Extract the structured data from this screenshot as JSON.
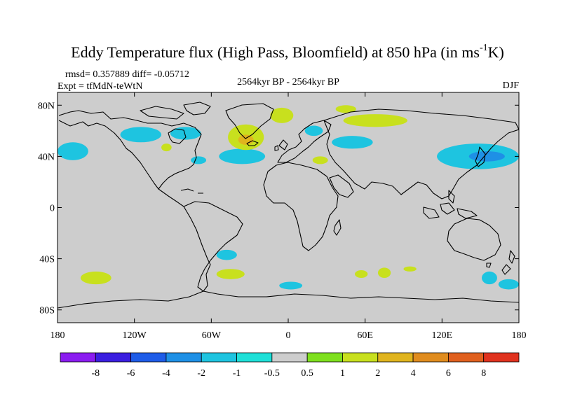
{
  "figure": {
    "title_main": "Eddy Temperature flux (High Pass, Bloomfield) at 850 hPa (in ms",
    "title_sup": "-1",
    "title_end": "K)",
    "stats": "rmsd= 0.357889 diff= -0.05712",
    "experiment": "Expt = tfMdN-teWtN",
    "period": "2564kyr BP - 2564kyr BP",
    "season": "DJF"
  },
  "map": {
    "projection": "cylindrical equidistant",
    "lon_range": [
      -180,
      180
    ],
    "lat_range": [
      -90,
      90
    ],
    "lon_ticks": [
      {
        "value": -180,
        "label": "180"
      },
      {
        "value": -120,
        "label": "120W"
      },
      {
        "value": -60,
        "label": "60W"
      },
      {
        "value": 0,
        "label": "0"
      },
      {
        "value": 60,
        "label": "60E"
      },
      {
        "value": 120,
        "label": "120E"
      },
      {
        "value": 180,
        "label": "180"
      }
    ],
    "lat_ticks": [
      {
        "value": 80,
        "label": "80N"
      },
      {
        "value": 40,
        "label": "40N"
      },
      {
        "value": 0,
        "label": "0"
      },
      {
        "value": -40,
        "label": "40S"
      },
      {
        "value": -80,
        "label": "80S"
      }
    ],
    "background_color": "#cdcdcd",
    "coastline_color": "#000000"
  },
  "colorbar": {
    "labels": [
      "-8",
      "-6",
      "-4",
      "-2",
      "-1",
      "-0.5",
      "0.5",
      "1",
      "2",
      "4",
      "6",
      "8"
    ],
    "colors": [
      "#8b1cf0",
      "#3a1ee0",
      "#1e5ce8",
      "#1e90e6",
      "#1ec4e0",
      "#1ee0d8",
      "#cdcdcd",
      "#7ee01e",
      "#c8e01e",
      "#e0b41e",
      "#e08c1e",
      "#e0601e",
      "#e0321e"
    ]
  },
  "anomalies": [
    {
      "level": "-1",
      "lon": -115,
      "lat": 57,
      "rlon": 16,
      "rlat": 6
    },
    {
      "level": "-1",
      "lon": -80,
      "lat": 58,
      "rlon": 12,
      "rlat": 5
    },
    {
      "level": "-1",
      "lon": -168,
      "lat": 44,
      "rlon": 12,
      "rlat": 7
    },
    {
      "level": "-1",
      "lon": -36,
      "lat": 40,
      "rlon": 18,
      "rlat": 6
    },
    {
      "level": "-1",
      "lon": -70,
      "lat": 37,
      "rlon": 6,
      "rlat": 3
    },
    {
      "level": "-1",
      "lon": 20,
      "lat": 60,
      "rlon": 7,
      "rlat": 4
    },
    {
      "level": "-1",
      "lon": 50,
      "lat": 51,
      "rlon": 16,
      "rlat": 5
    },
    {
      "level": "-1",
      "lon": 148,
      "lat": 40,
      "rlon": 32,
      "rlat": 10
    },
    {
      "level": "-1",
      "lon": -48,
      "lat": -37,
      "rlon": 8,
      "rlat": 4
    },
    {
      "level": "-1",
      "lon": 2,
      "lat": -61,
      "rlon": 9,
      "rlat": 3
    },
    {
      "level": "-1",
      "lon": 157,
      "lat": -55,
      "rlon": 6,
      "rlat": 5
    },
    {
      "level": "-1",
      "lon": 172,
      "lat": -60,
      "rlon": 8,
      "rlat": 4
    },
    {
      "level": "-2",
      "lon": 155,
      "lat": 40,
      "rlon": 14,
      "rlat": 4
    },
    {
      "level": "1",
      "lon": -33,
      "lat": 55,
      "rlon": 14,
      "rlat": 10
    },
    {
      "level": "1",
      "lon": -5,
      "lat": 72,
      "rlon": 9,
      "rlat": 6
    },
    {
      "level": "1",
      "lon": 68,
      "lat": 68,
      "rlon": 25,
      "rlat": 5
    },
    {
      "level": "1",
      "lon": 45,
      "lat": 77,
      "rlon": 8,
      "rlat": 3
    },
    {
      "level": "1",
      "lon": 25,
      "lat": 37,
      "rlon": 6,
      "rlat": 3
    },
    {
      "level": "1",
      "lon": -95,
      "lat": 47,
      "rlon": 4,
      "rlat": 3
    },
    {
      "level": "1",
      "lon": -150,
      "lat": -55,
      "rlon": 12,
      "rlat": 5
    },
    {
      "level": "1",
      "lon": -45,
      "lat": -52,
      "rlon": 11,
      "rlat": 4
    },
    {
      "level": "1",
      "lon": 57,
      "lat": -52,
      "rlon": 5,
      "rlat": 3
    },
    {
      "level": "1",
      "lon": 75,
      "lat": -51,
      "rlon": 5,
      "rlat": 4
    },
    {
      "level": "1",
      "lon": 95,
      "lat": -48,
      "rlon": 5,
      "rlat": 2
    },
    {
      "level": "2",
      "lon": -33,
      "lat": 53,
      "rlon": 6,
      "rlat": 4
    }
  ]
}
